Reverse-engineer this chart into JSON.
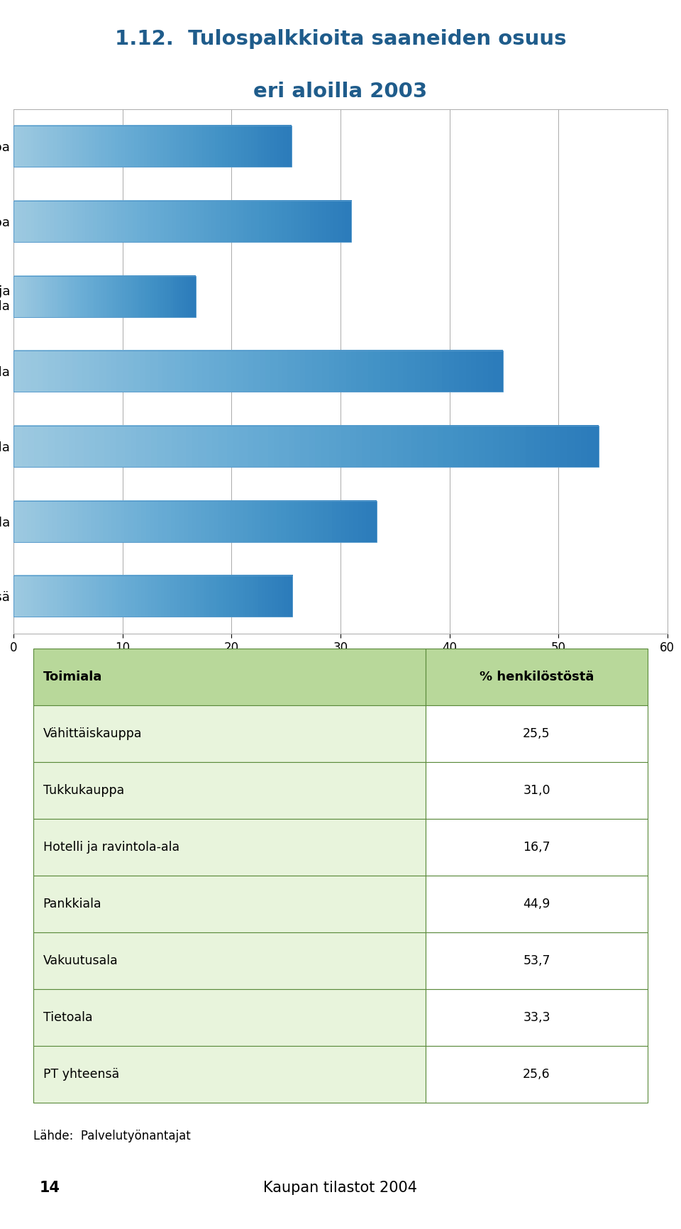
{
  "title_line1": "1.12.  Tulospalkkioita saaneiden osuus",
  "title_line2": "eri aloilla 2003",
  "title_color": "#1F5C8B",
  "categories": [
    "Vähittäiskauppa",
    "Tukkukauppa",
    "Hotelli- ja\nravintola-ala",
    "Pankkiala",
    "Vakuutusala",
    "Tietoala",
    "PT yhteensä"
  ],
  "values": [
    25.5,
    31.0,
    16.7,
    44.9,
    53.7,
    33.3,
    25.6
  ],
  "xlabel": "% henkilöstöstä",
  "xlim": [
    0,
    60
  ],
  "xticks": [
    0,
    10,
    20,
    30,
    40,
    50,
    60
  ],
  "background_color": "#ffffff",
  "table_header_bg": "#B8D89A",
  "table_row_bg": "#E8F4DC",
  "table_header_col1": "Toimiala",
  "table_header_col2": "% henkilöstöstä",
  "table_categories": [
    "Vähittäiskauppa",
    "Tukkukauppa",
    "Hotelli ja ravintola-ala",
    "Pankkiala",
    "Vakuutusala",
    "Tietoala",
    "PT yhteensä"
  ],
  "table_values": [
    "25,5",
    "31,0",
    "16,7",
    "44,9",
    "53,7",
    "33,3",
    "25,6"
  ],
  "source_text": "Lähde:  Palvelutyönantajat",
  "footer_number": "14",
  "footer_right": "Kaupan tilastot 2004",
  "footer_bg": "#B8D89A",
  "border_color": "#5A8A3A",
  "grid_color": "#aaaaaa"
}
